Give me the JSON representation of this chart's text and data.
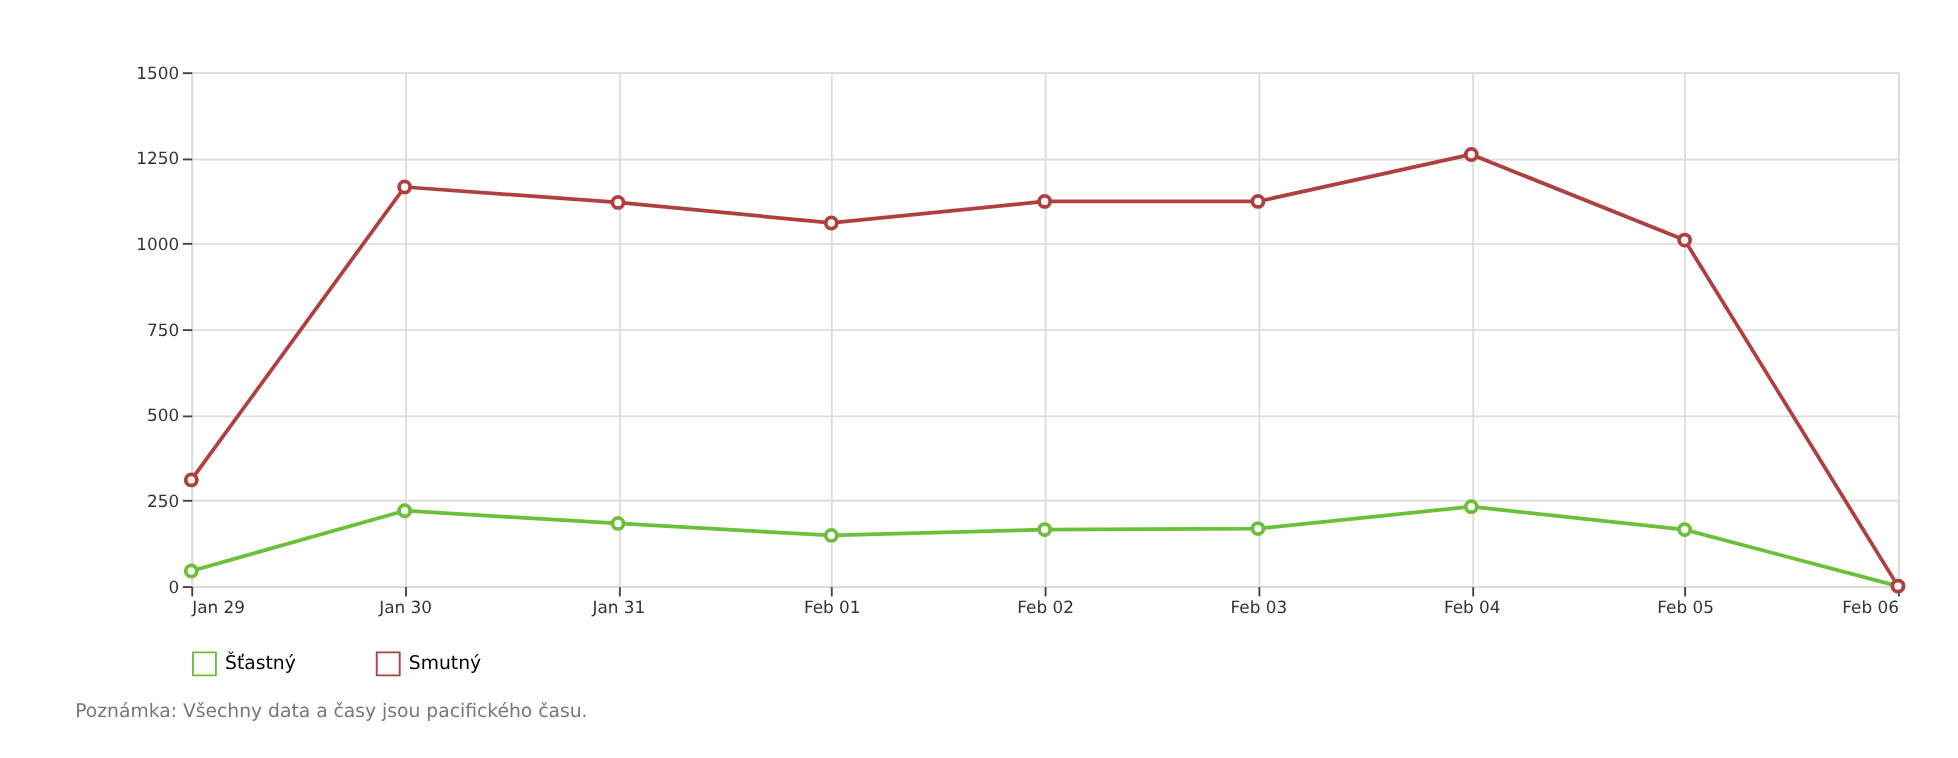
{
  "chart_data": {
    "type": "line",
    "categories": [
      "Jan 29",
      "Jan 30",
      "Jan 31",
      "Feb 01",
      "Feb 02",
      "Feb 03",
      "Feb 04",
      "Feb 05",
      "Feb 06"
    ],
    "series": [
      {
        "name": "Šťastný",
        "color": "#6cbf3a",
        "values": [
          44,
          220,
          183,
          148,
          165,
          168,
          232,
          165,
          0
        ]
      },
      {
        "name": "Smutný",
        "color": "#b04040",
        "values": [
          310,
          1165,
          1120,
          1060,
          1123,
          1123,
          1260,
          1010,
          0
        ]
      }
    ],
    "ylim": [
      0,
      1500
    ],
    "yticks": [
      0,
      250,
      500,
      750,
      1000,
      1250,
      1500
    ],
    "grid": true,
    "legend": "bottom",
    "marker": "circle",
    "annotations": [
      "Poznámka: Všechny data a časy jsou pacifického času."
    ]
  }
}
